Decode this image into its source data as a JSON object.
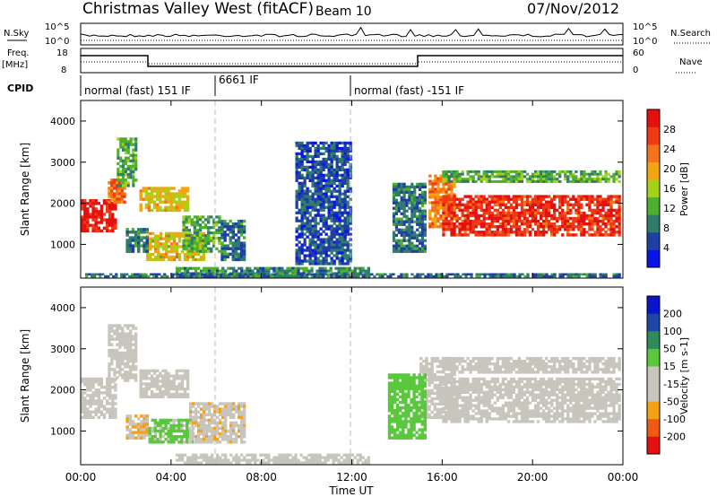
{
  "header": {
    "station": "Christmas Valley West (fitACF)",
    "beam": "Beam 10",
    "date": "07/Nov/2012"
  },
  "strip_panels": {
    "nsky_label": "N.Sky",
    "nsky_ticks": [
      "10^5",
      "10^0"
    ],
    "nsearch_label": "N.Search",
    "nsearch_ticks": [
      "10^5",
      "10^0"
    ],
    "freq_label": "Freq.",
    "freq_unit": "[MHz]",
    "freq_ticks": [
      18,
      8
    ],
    "nave_label": "Nave",
    "nave_ticks": [
      60,
      0
    ],
    "cpid_label": "CPID",
    "cpid_segments": [
      {
        "label": "normal (fast) 151 IF",
        "start": 0,
        "end": 6
      },
      {
        "label": "6661 IF",
        "start": 6,
        "end": 12
      },
      {
        "label": "normal (fast) -151 IF",
        "start": 12,
        "end": 24
      }
    ]
  },
  "x_axis": {
    "label": "Time UT",
    "ticks": [
      "00:00",
      "04:00",
      "08:00",
      "12:00",
      "16:00",
      "20:00",
      "00:00"
    ]
  },
  "colors": {
    "background": "#ffffff",
    "power_scale": [
      "#0a14e6",
      "#1f3fa6",
      "#2f7c6a",
      "#4caf2e",
      "#a6d216",
      "#f2a513",
      "#f5741a",
      "#f03a14",
      "#e60f0f"
    ],
    "velocity_scale": [
      "#e60f0f",
      "#f05a12",
      "#f5a015",
      "#c8c6bc",
      "#c8c6bc",
      "#5ac83c",
      "#2f8c5a",
      "#1f46a6",
      "#0a14c8"
    ]
  },
  "chart_data": [
    {
      "type": "heatmap",
      "title": "Power",
      "xlabel": "Time UT",
      "ylabel": "Slant Range [km]",
      "xlim": [
        0,
        24
      ],
      "ylim": [
        180,
        4500
      ],
      "yticks": [
        1000,
        2000,
        3000,
        4000
      ],
      "colorbar": {
        "label": "Power [dB]",
        "ticks": [
          28,
          24,
          20,
          16,
          12,
          8,
          4
        ],
        "range": [
          0,
          32
        ]
      },
      "regions": [
        {
          "t0": 0.0,
          "t1": 1.6,
          "r0": 1300,
          "r1": 2100,
          "value": 29
        },
        {
          "t0": 1.2,
          "t1": 2.0,
          "r0": 2000,
          "r1": 2600,
          "value": 24
        },
        {
          "t0": 1.6,
          "t1": 2.5,
          "r0": 2400,
          "r1": 3600,
          "value": 12
        },
        {
          "t0": 2.6,
          "t1": 4.8,
          "r0": 1800,
          "r1": 2400,
          "value": 18
        },
        {
          "t0": 2.9,
          "t1": 5.5,
          "r0": 600,
          "r1": 1300,
          "value": 18
        },
        {
          "t0": 2.0,
          "t1": 3.0,
          "r0": 800,
          "r1": 1400,
          "value": 8
        },
        {
          "t0": 4.5,
          "t1": 6.2,
          "r0": 800,
          "r1": 1700,
          "value": 12
        },
        {
          "t0": 6.2,
          "t1": 7.3,
          "r0": 600,
          "r1": 1600,
          "value": 8
        },
        {
          "t0": 4.2,
          "t1": 12.8,
          "r0": 200,
          "r1": 450,
          "value": 10
        },
        {
          "t0": 9.5,
          "t1": 12.0,
          "r0": 500,
          "r1": 3500,
          "value": 6
        },
        {
          "t0": 13.8,
          "t1": 15.3,
          "r0": 800,
          "r1": 2500,
          "value": 8
        },
        {
          "t0": 15.4,
          "t1": 16.6,
          "r0": 1400,
          "r1": 2700,
          "value": 22
        },
        {
          "t0": 16.0,
          "t1": 23.9,
          "r0": 1200,
          "r1": 2200,
          "value": 28
        },
        {
          "t0": 16.0,
          "t1": 23.9,
          "r0": 2500,
          "r1": 2800,
          "value": 12
        },
        {
          "t0": 0.2,
          "t1": 23.9,
          "r0": 200,
          "r1": 300,
          "value": 8
        }
      ]
    },
    {
      "type": "heatmap",
      "title": "Velocity",
      "xlabel": "Time UT",
      "ylabel": "Slant Range [km]",
      "xlim": [
        0,
        24
      ],
      "ylim": [
        180,
        4500
      ],
      "yticks": [
        1000,
        2000,
        3000,
        4000
      ],
      "colorbar": {
        "label": "Velocity [m s-1]",
        "ticks": [
          200,
          100,
          50,
          15,
          -15,
          -50,
          -100,
          -200
        ],
        "range": [
          -250,
          250
        ]
      },
      "regions": [
        {
          "t0": 0.0,
          "t1": 1.6,
          "r0": 1300,
          "r1": 2300,
          "value": 0
        },
        {
          "t0": 1.2,
          "t1": 2.5,
          "r0": 2200,
          "r1": 3600,
          "value": 0
        },
        {
          "t0": 2.6,
          "t1": 4.8,
          "r0": 1800,
          "r1": 2500,
          "value": 0
        },
        {
          "t0": 2.0,
          "t1": 3.0,
          "r0": 800,
          "r1": 1400,
          "value": -80
        },
        {
          "t0": 3.0,
          "t1": 5.0,
          "r0": 700,
          "r1": 1300,
          "value": 40
        },
        {
          "t0": 4.8,
          "t1": 7.3,
          "r0": 700,
          "r1": 1700,
          "value": -70
        },
        {
          "t0": 4.2,
          "t1": 12.8,
          "r0": 200,
          "r1": 450,
          "value": -40
        },
        {
          "t0": 15.0,
          "t1": 16.6,
          "r0": 1300,
          "r1": 2800,
          "value": 0
        },
        {
          "t0": 16.0,
          "t1": 23.9,
          "r0": 1200,
          "r1": 2300,
          "value": 0
        },
        {
          "t0": 16.0,
          "t1": 23.9,
          "r0": 2400,
          "r1": 2800,
          "value": 0
        },
        {
          "t0": 13.6,
          "t1": 15.3,
          "r0": 800,
          "r1": 2400,
          "value": 60
        }
      ]
    }
  ]
}
